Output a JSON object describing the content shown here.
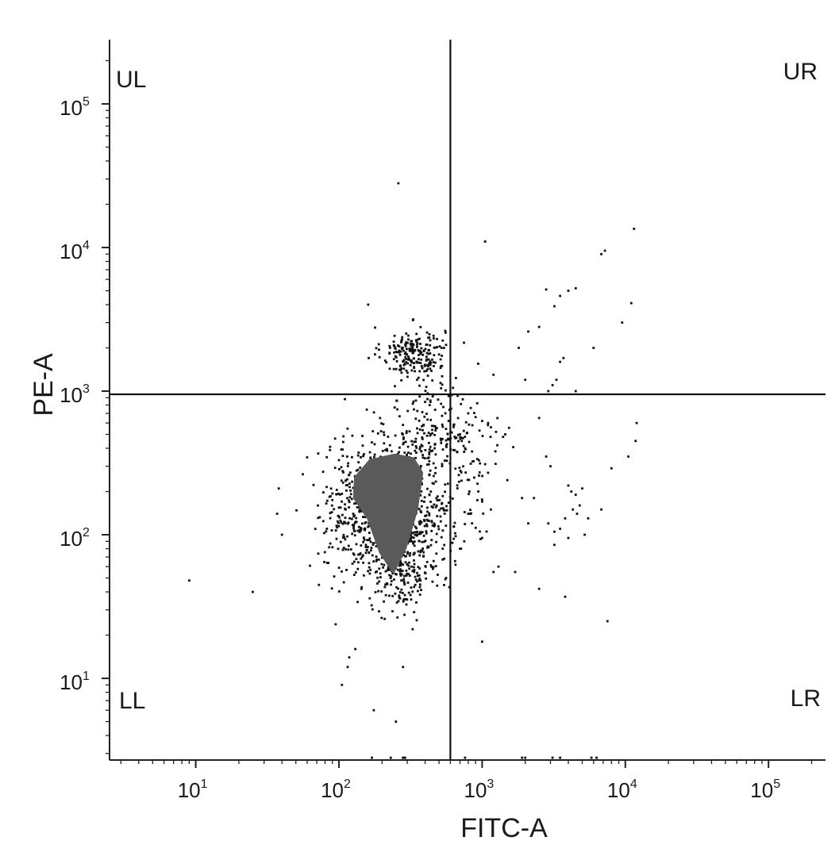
{
  "chart_data": {
    "type": "scatter",
    "title": "",
    "xlabel": "FITC-A",
    "ylabel": "PE-A",
    "xscale": "log",
    "yscale": "log",
    "xlim": [
      2.5,
      250000
    ],
    "ylim": [
      2.7,
      280000
    ],
    "x_ticks": [
      {
        "value": 10,
        "base": "10",
        "exp": "1"
      },
      {
        "value": 100,
        "base": "10",
        "exp": "2"
      },
      {
        "value": 1000,
        "base": "10",
        "exp": "3"
      },
      {
        "value": 10000,
        "base": "10",
        "exp": "4"
      },
      {
        "value": 100000,
        "base": "10",
        "exp": "5"
      }
    ],
    "y_ticks": [
      {
        "value": 10,
        "base": "10",
        "exp": "1"
      },
      {
        "value": 100,
        "base": "10",
        "exp": "2"
      },
      {
        "value": 1000,
        "base": "10",
        "exp": "3"
      },
      {
        "value": 10000,
        "base": "10",
        "exp": "4"
      },
      {
        "value": 100000,
        "base": "10",
        "exp": "5"
      }
    ],
    "gates": {
      "x": 600,
      "y": 950
    },
    "quadrants": [
      {
        "id": "UL",
        "label": "UL",
        "position": "top-left"
      },
      {
        "id": "UR",
        "label": "UR",
        "position": "top-right"
      },
      {
        "id": "LL",
        "label": "LL",
        "position": "bottom-left"
      },
      {
        "id": "LR",
        "label": "LR",
        "position": "bottom-right"
      }
    ],
    "grid": false,
    "dense_population": {
      "color": "#5a5a5a",
      "outline": [
        [
          130,
          250
        ],
        [
          165,
          330
        ],
        [
          245,
          360
        ],
        [
          330,
          340
        ],
        [
          380,
          270
        ],
        [
          350,
          150
        ],
        [
          290,
          80
        ],
        [
          240,
          55
        ],
        [
          195,
          75
        ],
        [
          160,
          130
        ],
        [
          128,
          180
        ]
      ]
    },
    "points": [
      [
        9,
        48
      ],
      [
        25,
        40
      ],
      [
        38,
        210
      ],
      [
        37,
        140
      ],
      [
        40,
        100
      ],
      [
        105,
        9
      ],
      [
        110,
        880
      ],
      [
        115,
        12
      ],
      [
        118,
        14
      ],
      [
        130,
        16
      ],
      [
        175,
        6
      ],
      [
        250,
        5
      ],
      [
        280,
        12
      ],
      [
        260,
        28000
      ],
      [
        1050,
        11000
      ],
      [
        11500,
        13500
      ],
      [
        7200,
        9500
      ],
      [
        6800,
        9000
      ],
      [
        4500,
        5200
      ],
      [
        4000,
        5000
      ],
      [
        3500,
        4600
      ],
      [
        3200,
        3900
      ],
      [
        2800,
        5100
      ],
      [
        11000,
        4100
      ],
      [
        9500,
        3000
      ],
      [
        2100,
        2600
      ],
      [
        1800,
        2000
      ],
      [
        2500,
        2800
      ],
      [
        6000,
        2000
      ],
      [
        3500,
        1600
      ],
      [
        3700,
        1700
      ],
      [
        3300,
        1200
      ],
      [
        3100,
        1100
      ],
      [
        2900,
        1000
      ],
      [
        4500,
        1000
      ],
      [
        1200,
        1300
      ],
      [
        2000,
        1200
      ],
      [
        160,
        4000
      ],
      [
        12000,
        600
      ],
      [
        11800,
        450
      ],
      [
        10500,
        350
      ],
      [
        8000,
        290
      ],
      [
        2500,
        650
      ],
      [
        2800,
        350
      ],
      [
        3000,
        300
      ],
      [
        1500,
        240
      ],
      [
        4000,
        220
      ],
      [
        4200,
        200
      ],
      [
        4500,
        190
      ],
      [
        4800,
        160
      ],
      [
        5000,
        210
      ],
      [
        4300,
        150
      ],
      [
        4600,
        140
      ],
      [
        5500,
        130
      ],
      [
        6800,
        150
      ],
      [
        3800,
        130
      ],
      [
        3500,
        110
      ],
      [
        1900,
        180
      ],
      [
        2300,
        180
      ],
      [
        2100,
        120
      ],
      [
        2900,
        120
      ],
      [
        3200,
        105
      ],
      [
        4000,
        95
      ],
      [
        5200,
        100
      ],
      [
        3200,
        85
      ],
      [
        1300,
        60
      ],
      [
        1200,
        55
      ],
      [
        1700,
        55
      ],
      [
        2500,
        42
      ],
      [
        3800,
        37
      ],
      [
        7500,
        25
      ],
      [
        1000,
        18
      ],
      [
        800,
        700
      ],
      [
        900,
        660
      ],
      [
        1000,
        620
      ],
      [
        1100,
        600
      ],
      [
        1150,
        560
      ],
      [
        1250,
        520
      ],
      [
        1400,
        480
      ],
      [
        1450,
        500
      ],
      [
        700,
        500
      ],
      [
        720,
        450
      ],
      [
        760,
        400
      ],
      [
        850,
        380
      ],
      [
        950,
        330
      ],
      [
        1050,
        310
      ],
      [
        1100,
        270
      ],
      [
        880,
        250
      ],
      [
        940,
        200
      ],
      [
        1000,
        170
      ],
      [
        1150,
        150
      ],
      [
        800,
        140
      ],
      [
        850,
        120
      ],
      [
        750,
        90
      ],
      [
        700,
        80
      ],
      [
        1000,
        95
      ],
      [
        170,
        2.8
      ],
      [
        230,
        2.8
      ],
      [
        280,
        2.8
      ],
      [
        290,
        2.8
      ],
      [
        760,
        2.8
      ],
      [
        1900,
        2.8
      ],
      [
        2000,
        2.8
      ],
      [
        3100,
        2.8
      ],
      [
        3500,
        2.8
      ],
      [
        5800,
        2.8
      ],
      [
        6300,
        2.8
      ],
      [
        530,
        80
      ],
      [
        560,
        50
      ],
      [
        500,
        1800
      ],
      [
        520,
        2000
      ],
      [
        560,
        2100
      ]
    ],
    "clusters": [
      {
        "cx": 330,
        "cy": 1850,
        "sx": 0.11,
        "sy": 0.09,
        "n": 210
      },
      {
        "cx": 430,
        "cy": 500,
        "sx": 0.16,
        "sy": 0.2,
        "n": 170
      },
      {
        "cx": 220,
        "cy": 150,
        "sx": 0.22,
        "sy": 0.23,
        "n": 950
      },
      {
        "cx": 280,
        "cy": 55,
        "sx": 0.12,
        "sy": 0.13,
        "n": 190
      },
      {
        "cx": 700,
        "cy": 320,
        "sx": 0.15,
        "sy": 0.25,
        "n": 70
      }
    ]
  }
}
